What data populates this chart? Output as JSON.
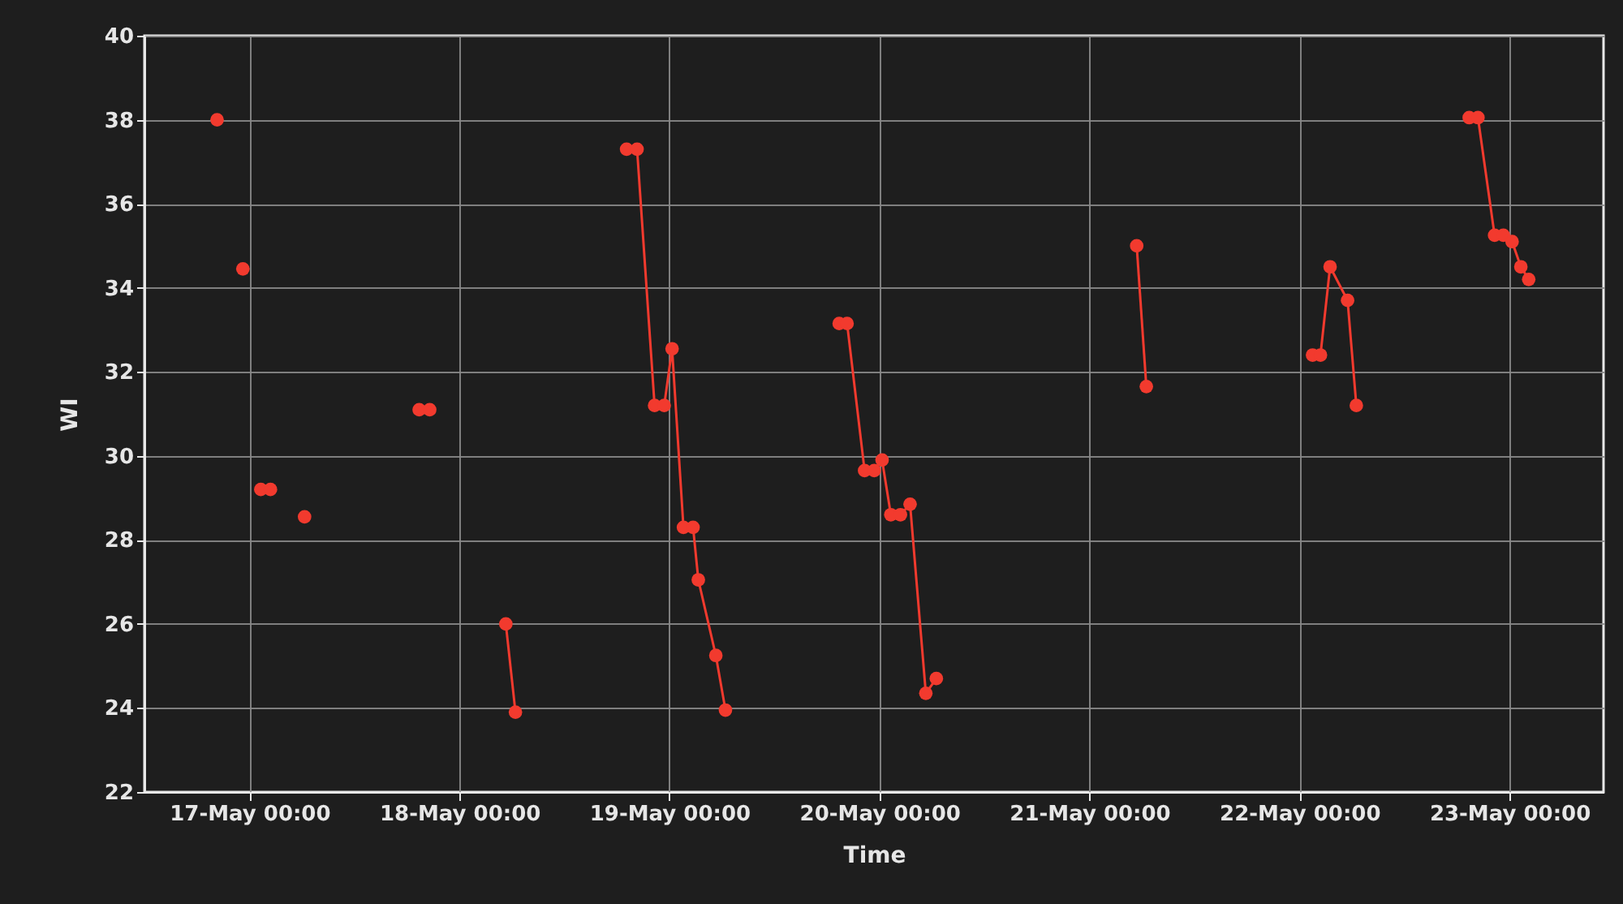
{
  "chart_data": {
    "type": "line",
    "xlabel": "Time",
    "ylabel": "WI",
    "xlim": [
      "--05-16T12:00",
      "--05-23T10:45"
    ],
    "xticks": [
      {
        "value": "--05-17T00:00",
        "label": "17-May 00:00"
      },
      {
        "value": "--05-18T00:00",
        "label": "18-May 00:00"
      },
      {
        "value": "--05-19T00:00",
        "label": "19-May 00:00"
      },
      {
        "value": "--05-20T00:00",
        "label": "20-May 00:00"
      },
      {
        "value": "--05-21T00:00",
        "label": "21-May 00:00"
      },
      {
        "value": "--05-22T00:00",
        "label": "22-May 00:00"
      },
      {
        "value": "--05-23T00:00",
        "label": "23-May 00:00"
      }
    ],
    "ylim": [
      22,
      40
    ],
    "yticks": [
      22,
      24,
      26,
      28,
      30,
      32,
      34,
      36,
      38,
      40
    ],
    "grid": true,
    "marker": "circle",
    "line_style": "solid",
    "series": [
      {
        "color": "#f23a2e",
        "x": [
          "--05-16T20:18",
          null,
          "--05-16T23:15",
          null,
          "--05-17T01:18",
          null,
          "--05-17T02:24",
          null,
          "--05-17T06:18",
          null,
          "--05-17T19:24",
          null,
          "--05-17T20:36",
          null,
          "--05-18T05:18",
          "--05-18T06:24",
          null,
          "--05-18T19:06",
          "--05-18T20:18",
          "--05-18T22:18",
          "--05-18T23:24",
          "--05-19T00:18",
          "--05-19T01:36",
          "--05-19T02:42",
          "--05-19T03:18",
          "--05-19T05:18",
          "--05-19T06:24",
          null,
          "--05-19T19:24",
          "--05-19T20:18",
          "--05-19T22:18",
          "--05-19T23:24",
          "--05-20T00:18",
          "--05-20T01:18",
          "--05-20T02:24",
          "--05-20T03:30",
          "--05-20T05:18",
          "--05-20T06:30",
          null,
          "--05-21T05:24",
          "--05-21T06:30",
          null,
          "--05-22T01:30",
          "--05-22T02:24",
          "--05-22T03:30",
          "--05-22T05:30",
          "--05-22T06:30",
          null,
          "--05-22T19:24",
          "--05-22T20:24",
          "--05-22T22:18",
          "--05-22T23:18",
          "--05-23T00:18",
          "--05-23T01:18",
          "--05-23T02:12"
        ],
        "values": [
          38.0,
          null,
          34.45,
          null,
          29.2,
          null,
          29.2,
          null,
          28.55,
          null,
          31.1,
          null,
          31.1,
          null,
          26.0,
          23.9,
          null,
          37.3,
          37.3,
          31.2,
          31.2,
          32.55,
          28.3,
          28.3,
          27.05,
          25.25,
          23.95,
          null,
          33.15,
          33.15,
          29.65,
          29.65,
          29.9,
          28.6,
          28.6,
          28.85,
          24.35,
          24.7,
          null,
          35.0,
          31.65,
          null,
          32.4,
          32.4,
          34.5,
          33.7,
          31.2,
          null,
          38.05,
          38.05,
          35.25,
          35.25,
          35.1,
          34.5,
          34.2
        ]
      }
    ]
  }
}
